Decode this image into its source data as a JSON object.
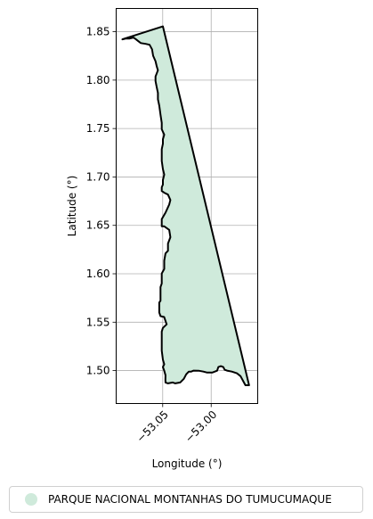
{
  "chart_data": {
    "type": "map",
    "xlabel": "Longitude (°)",
    "ylabel": "Latitude (°)",
    "xlim": [
      -53.098,
      -52.952
    ],
    "ylim": [
      1.466,
      1.874
    ],
    "x_ticks": [
      {
        "value": -53.05,
        "label": "−53.05"
      },
      {
        "value": -53.0,
        "label": "−53.00"
      }
    ],
    "y_ticks": [
      {
        "value": 1.85,
        "label": "1.85"
      },
      {
        "value": 1.8,
        "label": "1.80"
      },
      {
        "value": 1.75,
        "label": "1.75"
      },
      {
        "value": 1.7,
        "label": "1.70"
      },
      {
        "value": 1.65,
        "label": "1.65"
      },
      {
        "value": 1.6,
        "label": "1.60"
      },
      {
        "value": 1.55,
        "label": "1.55"
      },
      {
        "value": 1.5,
        "label": "1.50"
      }
    ],
    "grid": true,
    "legend_position": "bottom",
    "series": [
      {
        "name": "PARQUE NACIONAL MONTANHAS DO TUMUCUMAQUE",
        "fill": "#cfeadb",
        "edge": "#000000",
        "boundary": [
          [
            -53.0498,
            1.8555
          ],
          [
            -52.9609,
            1.4849
          ],
          [
            -52.9647,
            1.4849
          ],
          [
            -52.9697,
            1.4943
          ],
          [
            -52.9735,
            1.4972
          ],
          [
            -52.9787,
            1.499
          ],
          [
            -52.9837,
            1.5
          ],
          [
            -52.9862,
            1.5009
          ],
          [
            -52.9875,
            1.5037
          ],
          [
            -52.99,
            1.5046
          ],
          [
            -52.9926,
            1.5037
          ],
          [
            -52.9939,
            1.4999
          ],
          [
            -52.9989,
            1.498
          ],
          [
            -53.0042,
            1.498
          ],
          [
            -53.008,
            1.499
          ],
          [
            -53.013,
            1.4999
          ],
          [
            -53.0181,
            1.5
          ],
          [
            -53.0206,
            1.499
          ],
          [
            -53.0231,
            1.499
          ],
          [
            -53.0257,
            1.4962
          ],
          [
            -53.0282,
            1.4915
          ],
          [
            -53.032,
            1.4877
          ],
          [
            -53.037,
            1.4868
          ],
          [
            -53.0396,
            1.4877
          ],
          [
            -53.0446,
            1.4868
          ],
          [
            -53.0471,
            1.4877
          ],
          [
            -53.0472,
            1.4906
          ],
          [
            -53.0471,
            1.4952
          ],
          [
            -53.0484,
            1.4999
          ],
          [
            -53.0498,
            1.5037
          ],
          [
            -53.0484,
            1.5065
          ],
          [
            -53.0498,
            1.5112
          ],
          [
            -53.051,
            1.5206
          ],
          [
            -53.051,
            1.53
          ],
          [
            -53.051,
            1.5403
          ],
          [
            -53.0498,
            1.5441
          ],
          [
            -53.0459,
            1.5478
          ],
          [
            -53.0485,
            1.5553
          ],
          [
            -53.0523,
            1.5563
          ],
          [
            -53.0536,
            1.56
          ],
          [
            -53.0536,
            1.5703
          ],
          [
            -53.0523,
            1.5722
          ],
          [
            -53.0523,
            1.5863
          ],
          [
            -53.051,
            1.59
          ],
          [
            -53.051,
            1.6003
          ],
          [
            -53.0484,
            1.605
          ],
          [
            -53.0484,
            1.6135
          ],
          [
            -53.0471,
            1.621
          ],
          [
            -53.0446,
            1.6238
          ],
          [
            -53.0446,
            1.6312
          ],
          [
            -53.0421,
            1.6378
          ],
          [
            -53.0433,
            1.6453
          ],
          [
            -53.0484,
            1.649
          ],
          [
            -53.051,
            1.649
          ],
          [
            -53.051,
            1.6565
          ],
          [
            -53.0471,
            1.6631
          ],
          [
            -53.0433,
            1.6716
          ],
          [
            -53.0421,
            1.6762
          ],
          [
            -53.0446,
            1.6818
          ],
          [
            -53.0484,
            1.6837
          ],
          [
            -53.051,
            1.6855
          ],
          [
            -53.051,
            1.6893
          ],
          [
            -53.0498,
            1.6921
          ],
          [
            -53.0498,
            1.6968
          ],
          [
            -53.0484,
            1.7024
          ],
          [
            -53.0498,
            1.7081
          ],
          [
            -53.051,
            1.7165
          ],
          [
            -53.051,
            1.7287
          ],
          [
            -53.0498,
            1.7343
          ],
          [
            -53.0498,
            1.739
          ],
          [
            -53.0484,
            1.7437
          ],
          [
            -53.051,
            1.7493
          ],
          [
            -53.051,
            1.7558
          ],
          [
            -53.0523,
            1.7643
          ],
          [
            -53.0536,
            1.7737
          ],
          [
            -53.0549,
            1.7802
          ],
          [
            -53.0549,
            1.7868
          ],
          [
            -53.0561,
            1.7924
          ],
          [
            -53.0574,
            1.799
          ],
          [
            -53.0574,
            1.8037
          ],
          [
            -53.0549,
            1.8102
          ],
          [
            -53.0561,
            1.814
          ],
          [
            -53.0574,
            1.8196
          ],
          [
            -53.0599,
            1.8252
          ],
          [
            -53.061,
            1.8318
          ],
          [
            -53.0636,
            1.8365
          ],
          [
            -53.0676,
            1.8374
          ],
          [
            -53.0726,
            1.8383
          ],
          [
            -53.0751,
            1.8402
          ],
          [
            -53.0776,
            1.8421
          ],
          [
            -53.0802,
            1.844
          ],
          [
            -53.084,
            1.843
          ],
          [
            -53.0878,
            1.843
          ],
          [
            -53.0916,
            1.8421
          ],
          [
            -53.0498,
            1.8555
          ]
        ]
      }
    ]
  }
}
